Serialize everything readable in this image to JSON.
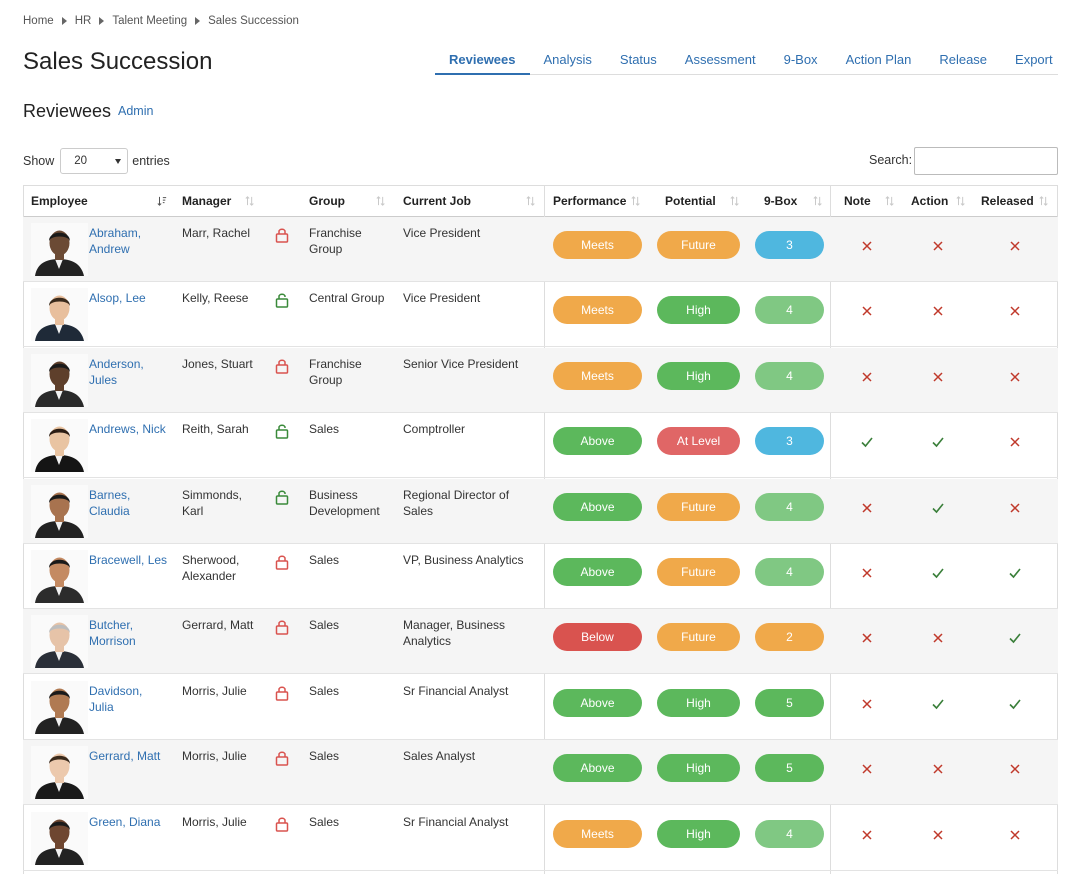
{
  "breadcrumb": [
    "Home",
    "HR",
    "Talent Meeting",
    "Sales Succession"
  ],
  "page_title": "Sales Succession",
  "tabs": [
    {
      "label": "Reviewees",
      "active": true
    },
    {
      "label": "Analysis",
      "active": false
    },
    {
      "label": "Status",
      "active": false
    },
    {
      "label": "Assessment",
      "active": false
    },
    {
      "label": "9-Box",
      "active": false
    },
    {
      "label": "Action Plan",
      "active": false
    },
    {
      "label": "Release",
      "active": false
    },
    {
      "label": "Export",
      "active": false
    }
  ],
  "section": {
    "title": "Reviewees",
    "admin_label": "Admin"
  },
  "controls": {
    "show_label": "Show",
    "entries_value": "20",
    "entries_label": "entries",
    "search_label": "Search:",
    "search_value": ""
  },
  "columns": [
    "Employee",
    "Manager",
    "Group",
    "Current Job",
    "Performance",
    "Potential",
    "9-Box",
    "Note",
    "Action",
    "Released"
  ],
  "colors": {
    "link": "#2f6fb0",
    "Meets": "#f0a94a",
    "Above": "#5cb85c",
    "Below": "#d9534f",
    "Future": "#f0a94a",
    "High": "#5cb85c",
    "At Level": "#e06666",
    "box_2": "#f0a94a",
    "box_3": "#4fb7df",
    "box_4": "#80c883",
    "box_5": "#5cb85c",
    "lock_locked": "#d9534f",
    "lock_unlocked": "#3a8a3a",
    "check": "#3a7f3a",
    "cross": "#c0392b"
  },
  "rows": [
    {
      "employee": [
        "Abraham,",
        "Andrew"
      ],
      "manager": [
        "Marr, Rachel"
      ],
      "lock": "locked",
      "group": [
        "Franchise",
        "Group"
      ],
      "job": [
        "Vice President"
      ],
      "performance": "Meets",
      "potential": "Future",
      "box": "3",
      "note": "cross",
      "action": "cross",
      "released": "cross",
      "avatar": {
        "skin": "#6b4a34",
        "hair": "#1a1a1a",
        "suit": "#222"
      }
    },
    {
      "employee": [
        "Alsop, Lee"
      ],
      "manager": [
        "Kelly, Reese"
      ],
      "lock": "unlocked",
      "group": [
        "Central Group"
      ],
      "job": [
        "Vice President"
      ],
      "performance": "Meets",
      "potential": "High",
      "box": "4",
      "note": "cross",
      "action": "cross",
      "released": "cross",
      "avatar": {
        "skin": "#e8bf9d",
        "hair": "#3a2a1c",
        "suit": "#1f2a38"
      }
    },
    {
      "employee": [
        "Anderson,",
        "Jules"
      ],
      "manager": [
        "Jones, Stuart"
      ],
      "lock": "locked",
      "group": [
        "Franchise",
        "Group"
      ],
      "job": [
        "Senior Vice President"
      ],
      "performance": "Meets",
      "potential": "High",
      "box": "4",
      "note": "cross",
      "action": "cross",
      "released": "cross",
      "avatar": {
        "skin": "#5e3f2b",
        "hair": "#1a1a1a",
        "suit": "#2a2a2a"
      }
    },
    {
      "employee": [
        "Andrews, Nick"
      ],
      "manager": [
        "Reith, Sarah"
      ],
      "lock": "unlocked",
      "group": [
        "Sales"
      ],
      "job": [
        "Comptroller"
      ],
      "performance": "Above",
      "potential": "At Level",
      "box": "3",
      "note": "check",
      "action": "check",
      "released": "cross",
      "avatar": {
        "skin": "#e9c4a2",
        "hair": "#2b1d14",
        "suit": "#151515"
      }
    },
    {
      "employee": [
        "Barnes,",
        "Claudia"
      ],
      "manager": [
        "Simmonds,",
        "Karl"
      ],
      "lock": "unlocked",
      "group": [
        "Business",
        "Development"
      ],
      "job": [
        "Regional Director of",
        "Sales"
      ],
      "performance": "Above",
      "potential": "Future",
      "box": "4",
      "note": "cross",
      "action": "check",
      "released": "cross",
      "avatar": {
        "skin": "#a8734f",
        "hair": "#1a1a1a",
        "suit": "#222"
      }
    },
    {
      "employee": [
        "Bracewell, Les"
      ],
      "manager": [
        "Sherwood,",
        "Alexander"
      ],
      "lock": "locked",
      "group": [
        "Sales"
      ],
      "job": [
        "VP, Business Analytics"
      ],
      "performance": "Above",
      "potential": "Future",
      "box": "4",
      "note": "cross",
      "action": "check",
      "released": "check",
      "avatar": {
        "skin": "#c48a62",
        "hair": "#1a1a1a",
        "suit": "#2c2c2c"
      }
    },
    {
      "employee": [
        "Butcher,",
        "Morrison"
      ],
      "manager": [
        "Gerrard, Matt"
      ],
      "lock": "locked",
      "group": [
        "Sales"
      ],
      "job": [
        "Manager, Business",
        "Analytics"
      ],
      "performance": "Below",
      "potential": "Future",
      "box": "2",
      "note": "cross",
      "action": "cross",
      "released": "check",
      "avatar": {
        "skin": "#e6c3a8",
        "hair": "#bdbdbd",
        "suit": "#2a2f38"
      }
    },
    {
      "employee": [
        "Davidson,",
        "Julia"
      ],
      "manager": [
        "Morris, Julie"
      ],
      "lock": "locked",
      "group": [
        "Sales"
      ],
      "job": [
        "Sr Financial Analyst"
      ],
      "performance": "Above",
      "potential": "High",
      "box": "5",
      "note": "cross",
      "action": "check",
      "released": "check",
      "avatar": {
        "skin": "#b07a52",
        "hair": "#1a1a1a",
        "suit": "#222"
      }
    },
    {
      "employee": [
        "Gerrard, Matt"
      ],
      "manager": [
        "Morris, Julie"
      ],
      "lock": "locked",
      "group": [
        "Sales"
      ],
      "job": [
        "Sales Analyst"
      ],
      "performance": "Above",
      "potential": "High",
      "box": "5",
      "note": "cross",
      "action": "cross",
      "released": "cross",
      "avatar": {
        "skin": "#ecc9ad",
        "hair": "#3a2a1c",
        "suit": "#1a1a1a"
      }
    },
    {
      "employee": [
        "Green, Diana"
      ],
      "manager": [
        "Morris, Julie"
      ],
      "lock": "locked",
      "group": [
        "Sales"
      ],
      "job": [
        "Sr Financial Analyst"
      ],
      "performance": "Meets",
      "potential": "High",
      "box": "4",
      "note": "cross",
      "action": "cross",
      "released": "cross",
      "avatar": {
        "skin": "#6e4630",
        "hair": "#1a1a1a",
        "suit": "#222"
      }
    }
  ]
}
